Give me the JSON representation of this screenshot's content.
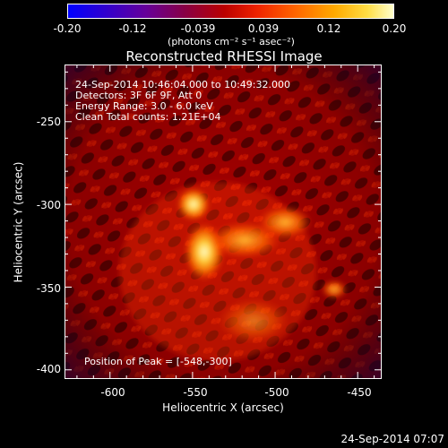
{
  "colorbar": {
    "ticks": [
      "-0.20",
      "-0.12",
      "-0.039",
      "0.039",
      "0.12",
      "0.20"
    ],
    "units": "(photons cm⁻² s⁻¹ asec⁻²)",
    "range": [
      -0.2,
      0.2
    ]
  },
  "title": "Reconstructed RHESSI Image",
  "info": {
    "time": "24-Sep-2014 10:46:04.000 to 10:49:32.000",
    "detectors": "Detectors: 3F 6F 9F, Att 0",
    "energy": "Energy Range: 3.0 - 6.0 keV",
    "method": "Clean    Total counts: 1.21E+04",
    "peak": "Position of Peak = [-548,-300]"
  },
  "axes": {
    "xlabel": "Heliocentric X (arcsec)",
    "ylabel": "Heliocentric Y (arcsec)",
    "xticks": [
      "-600",
      "-550",
      "-500",
      "-450"
    ],
    "xtick_values": [
      -600,
      -550,
      -500,
      -450
    ],
    "yticks": [
      "-250",
      "-300",
      "-350",
      "-400"
    ],
    "ytick_values": [
      -250,
      -300,
      -350,
      -400
    ],
    "xlim": [
      -627,
      -436
    ],
    "ylim": [
      -405,
      -216
    ]
  },
  "footer": {
    "timestamp": "24-Sep-2014 07:07"
  }
}
